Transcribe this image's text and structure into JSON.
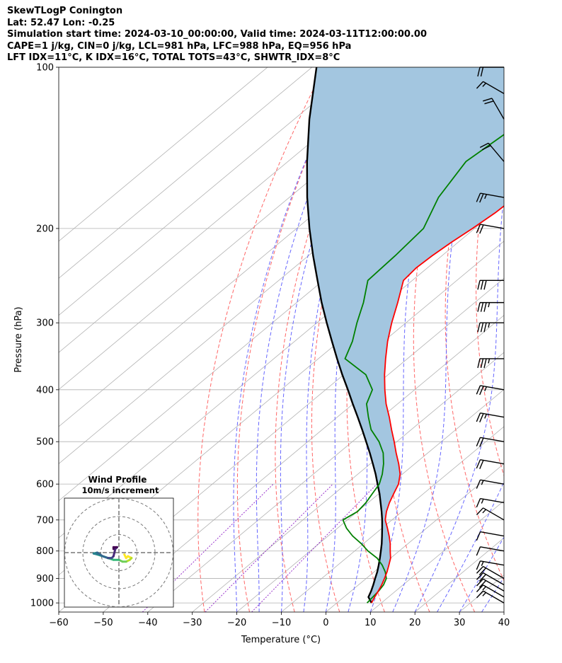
{
  "header": {
    "lines": [
      "SkewTLogP Conington",
      "Lat: 52.47   Lon: -0.25",
      "Simulation start time: 2024-03-10_00:00:00, Valid time: 2024-03-11T12:00:00.00",
      "CAPE=1 j/kg, CIN=0 j/kg, LCL=981 hPa, LFC=988 hPa, EQ=956 hPa",
      "LFT IDX=11°C, K IDX=16°C, TOTAL TOTS=43°C, SHWTR_IDX=8°C"
    ]
  },
  "colors": {
    "temperature": "#ff0000",
    "dewpoint": "#008000",
    "parcel": "#000000",
    "cape_fill": "#a3c6e0",
    "dry_adiabat": "#ff6666",
    "moist_adiabat": "#6666ff",
    "mixing_ratio": "#9933cc",
    "isotherm": "#b0b0b0",
    "grid": "#b0b0b0"
  },
  "chart_data": [
    {
      "type": "line",
      "chart_kind": "skew-t log-p",
      "xlabel": "Temperature ($^\\circ$C)",
      "ylabel": "Pressure (hPa)",
      "xlim": [
        -60,
        40
      ],
      "ylim": [
        1040,
        100
      ],
      "y_scale": "log",
      "x_ticks": [
        -60,
        -50,
        -40,
        -30,
        -20,
        -10,
        0,
        10,
        20,
        30,
        40
      ],
      "x_tick_labels": [
        "−60",
        "−50",
        "−40",
        "−30",
        "−20",
        "−10",
        "0",
        "10",
        "20",
        "30",
        "40"
      ],
      "y_ticks": [
        1000,
        900,
        800,
        700,
        600,
        500,
        400,
        300,
        200,
        100
      ],
      "y_tick_labels": [
        "1000",
        "900",
        "800",
        "700",
        "600",
        "500",
        "400",
        "300",
        "200",
        "100"
      ],
      "grid": true,
      "series": [
        {
          "key": "temperature",
          "color": "#ff0000",
          "pressure": [
            1000,
            975,
            950,
            925,
            900,
            875,
            850,
            825,
            800,
            775,
            750,
            725,
            700,
            675,
            650,
            625,
            600,
            575,
            550,
            525,
            500,
            475,
            450,
            425,
            400,
            375,
            350,
            325,
            300,
            275,
            250,
            237,
            225,
            212,
            200,
            187,
            175,
            162,
            150,
            137,
            125,
            112,
            100
          ],
          "values": [
            7.8,
            6.9,
            6.1,
            5.2,
            4.1,
            2.9,
            1.5,
            0.0,
            -2.0,
            -4.0,
            -6.3,
            -8.8,
            -11.5,
            -13.5,
            -15.2,
            -16.7,
            -18.2,
            -20.5,
            -23.6,
            -27.1,
            -30.6,
            -34.4,
            -38.3,
            -42.6,
            -46.7,
            -50.8,
            -54.9,
            -59.1,
            -63.2,
            -67.3,
            -72.0,
            -72.5,
            -72.2,
            -71.5,
            -70.5,
            -69.6,
            -69.3,
            -68.2,
            -67.0,
            -66.0,
            -65.2,
            -65.4,
            -67.0
          ]
        },
        {
          "key": "dewpoint",
          "color": "#008000",
          "pressure": [
            1000,
            975,
            950,
            925,
            900,
            875,
            850,
            825,
            800,
            775,
            750,
            725,
            700,
            675,
            650,
            625,
            600,
            575,
            550,
            525,
            500,
            475,
            450,
            425,
            400,
            375,
            350,
            325,
            300,
            275,
            250,
            225,
            200,
            175,
            150,
            125,
            100
          ],
          "values": [
            6.8,
            6.5,
            6.2,
            5.6,
            4.5,
            2.5,
            0.0,
            -3.0,
            -7.0,
            -10.5,
            -14.5,
            -18.0,
            -21.0,
            -20.0,
            -20.5,
            -21.5,
            -22.5,
            -24.5,
            -27.0,
            -30.0,
            -34.0,
            -39.0,
            -43.0,
            -47.0,
            -49.5,
            -55.0,
            -64.0,
            -67.0,
            -71.0,
            -75.0,
            -80.0,
            -80.5,
            -81.5,
            -86.5,
            -90.0,
            -88.0,
            -86.0
          ]
        },
        {
          "key": "parcel",
          "color": "#000000",
          "pressure": [
            1000,
            975,
            950,
            925,
            900,
            875,
            850,
            825,
            800,
            775,
            750,
            725,
            700,
            675,
            650,
            625,
            600,
            575,
            550,
            525,
            500,
            475,
            450,
            425,
            400,
            375,
            350,
            325,
            300,
            275,
            250,
            225,
            200,
            175,
            150,
            125,
            100
          ],
          "values": [
            7.8,
            5.5,
            4.5,
            3.3,
            2.0,
            0.7,
            -0.8,
            -2.4,
            -4.1,
            -5.9,
            -7.9,
            -10.0,
            -12.2,
            -14.6,
            -17.2,
            -19.9,
            -22.9,
            -26.0,
            -29.4,
            -33.0,
            -36.9,
            -41.0,
            -45.4,
            -50.1,
            -55.0,
            -60.3,
            -65.8,
            -71.6,
            -77.8,
            -84.4,
            -91.3,
            -98.9,
            -107.1,
            -116.0,
            -125.7,
            -136.6,
            -149.0
          ]
        }
      ],
      "cape_region": "area between parcel and temperature curves"
    },
    {
      "type": "line",
      "chart_kind": "wind barbs",
      "units": "knots",
      "barbs": [
        {
          "pressure": 1000,
          "speed": 15,
          "direction": 300
        },
        {
          "pressure": 975,
          "speed": 15,
          "direction": 300
        },
        {
          "pressure": 950,
          "speed": 20,
          "direction": 300
        },
        {
          "pressure": 925,
          "speed": 20,
          "direction": 300
        },
        {
          "pressure": 900,
          "speed": 20,
          "direction": 300
        },
        {
          "pressure": 850,
          "speed": 15,
          "direction": 280
        },
        {
          "pressure": 800,
          "speed": 10,
          "direction": 280
        },
        {
          "pressure": 750,
          "speed": 10,
          "direction": 280
        },
        {
          "pressure": 700,
          "speed": 15,
          "direction": 300
        },
        {
          "pressure": 650,
          "speed": 15,
          "direction": 280
        },
        {
          "pressure": 600,
          "speed": 15,
          "direction": 280
        },
        {
          "pressure": 550,
          "speed": 20,
          "direction": 280
        },
        {
          "pressure": 500,
          "speed": 20,
          "direction": 280
        },
        {
          "pressure": 450,
          "speed": 25,
          "direction": 280
        },
        {
          "pressure": 400,
          "speed": 25,
          "direction": 280
        },
        {
          "pressure": 350,
          "speed": 35,
          "direction": 270
        },
        {
          "pressure": 300,
          "speed": 35,
          "direction": 270
        },
        {
          "pressure": 275,
          "speed": 35,
          "direction": 270
        },
        {
          "pressure": 250,
          "speed": 30,
          "direction": 270
        },
        {
          "pressure": 200,
          "speed": 20,
          "direction": 280
        },
        {
          "pressure": 175,
          "speed": 25,
          "direction": 280
        },
        {
          "pressure": 150,
          "speed": 20,
          "direction": 320
        },
        {
          "pressure": 125,
          "speed": 20,
          "direction": 330
        },
        {
          "pressure": 112,
          "speed": 15,
          "direction": 300
        },
        {
          "pressure": 100,
          "speed": 20,
          "direction": 270
        }
      ]
    },
    {
      "type": "scatter",
      "chart_kind": "hodograph",
      "title": "Wind Profile",
      "subtitle": "10m/s increment",
      "ring_step": 10,
      "rings": 3,
      "points": [
        {
          "u": 3,
          "v": -1
        },
        {
          "u": 4,
          "v": -3
        },
        {
          "u": 5,
          "v": -2
        },
        {
          "u": 7,
          "v": -3
        },
        {
          "u": 6,
          "v": -4
        },
        {
          "u": 4,
          "v": -5
        },
        {
          "u": 2,
          "v": -5
        },
        {
          "u": 0,
          "v": -4
        },
        {
          "u": -3,
          "v": -4
        },
        {
          "u": -6,
          "v": -3
        },
        {
          "u": -9,
          "v": -2
        },
        {
          "u": -12,
          "v": -1
        },
        {
          "u": -14,
          "v": -0.5
        },
        {
          "u": -12,
          "v": 0
        },
        {
          "u": -9,
          "v": -2
        },
        {
          "u": -6,
          "v": -3
        },
        {
          "u": -4,
          "v": -3
        },
        {
          "u": -3,
          "v": -2
        },
        {
          "u": -2,
          "v": 2
        },
        {
          "u": -1,
          "v": 3
        },
        {
          "u": -3,
          "v": 3
        },
        {
          "u": -3,
          "v": 2
        }
      ]
    }
  ]
}
